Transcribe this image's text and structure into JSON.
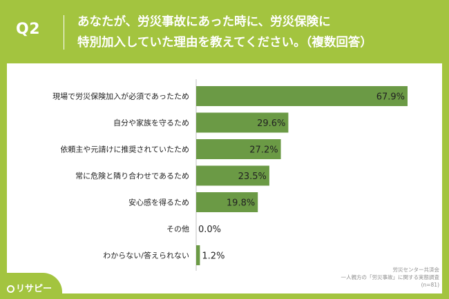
{
  "header": {
    "q_label": "Q2",
    "question_line1": "あなたが、労災事故にあった時に、労災保険に",
    "question_line2": "特別加入していた理由を教えてください。（複数回答）"
  },
  "brand": {
    "name": "リサピー"
  },
  "source": {
    "line1": "労災センター共済会",
    "line2": "一人親方の「労災事故」に関する実態調査",
    "line3": "(n=81)"
  },
  "colors": {
    "background": "#a3c43f",
    "bar": "#6b9a45",
    "panel": "#ffffff"
  },
  "chart_data": {
    "type": "bar",
    "orientation": "horizontal",
    "categories": [
      "現場で労災保険加入が必須であったため",
      "自分や家族を守るため",
      "依頼主や元請けに推奨されていたため",
      "常に危険と隣り合わせであるため",
      "安心感を得るため",
      "その他",
      "わからない/答えられない"
    ],
    "values": [
      67.9,
      29.6,
      27.2,
      23.5,
      19.8,
      0.0,
      1.2
    ],
    "value_labels": [
      "67.9%",
      "29.6%",
      "27.2%",
      "23.5%",
      "19.8%",
      "0.0%",
      "1.2%"
    ],
    "xlim": [
      0,
      100
    ],
    "grid": false,
    "legend": "none"
  }
}
